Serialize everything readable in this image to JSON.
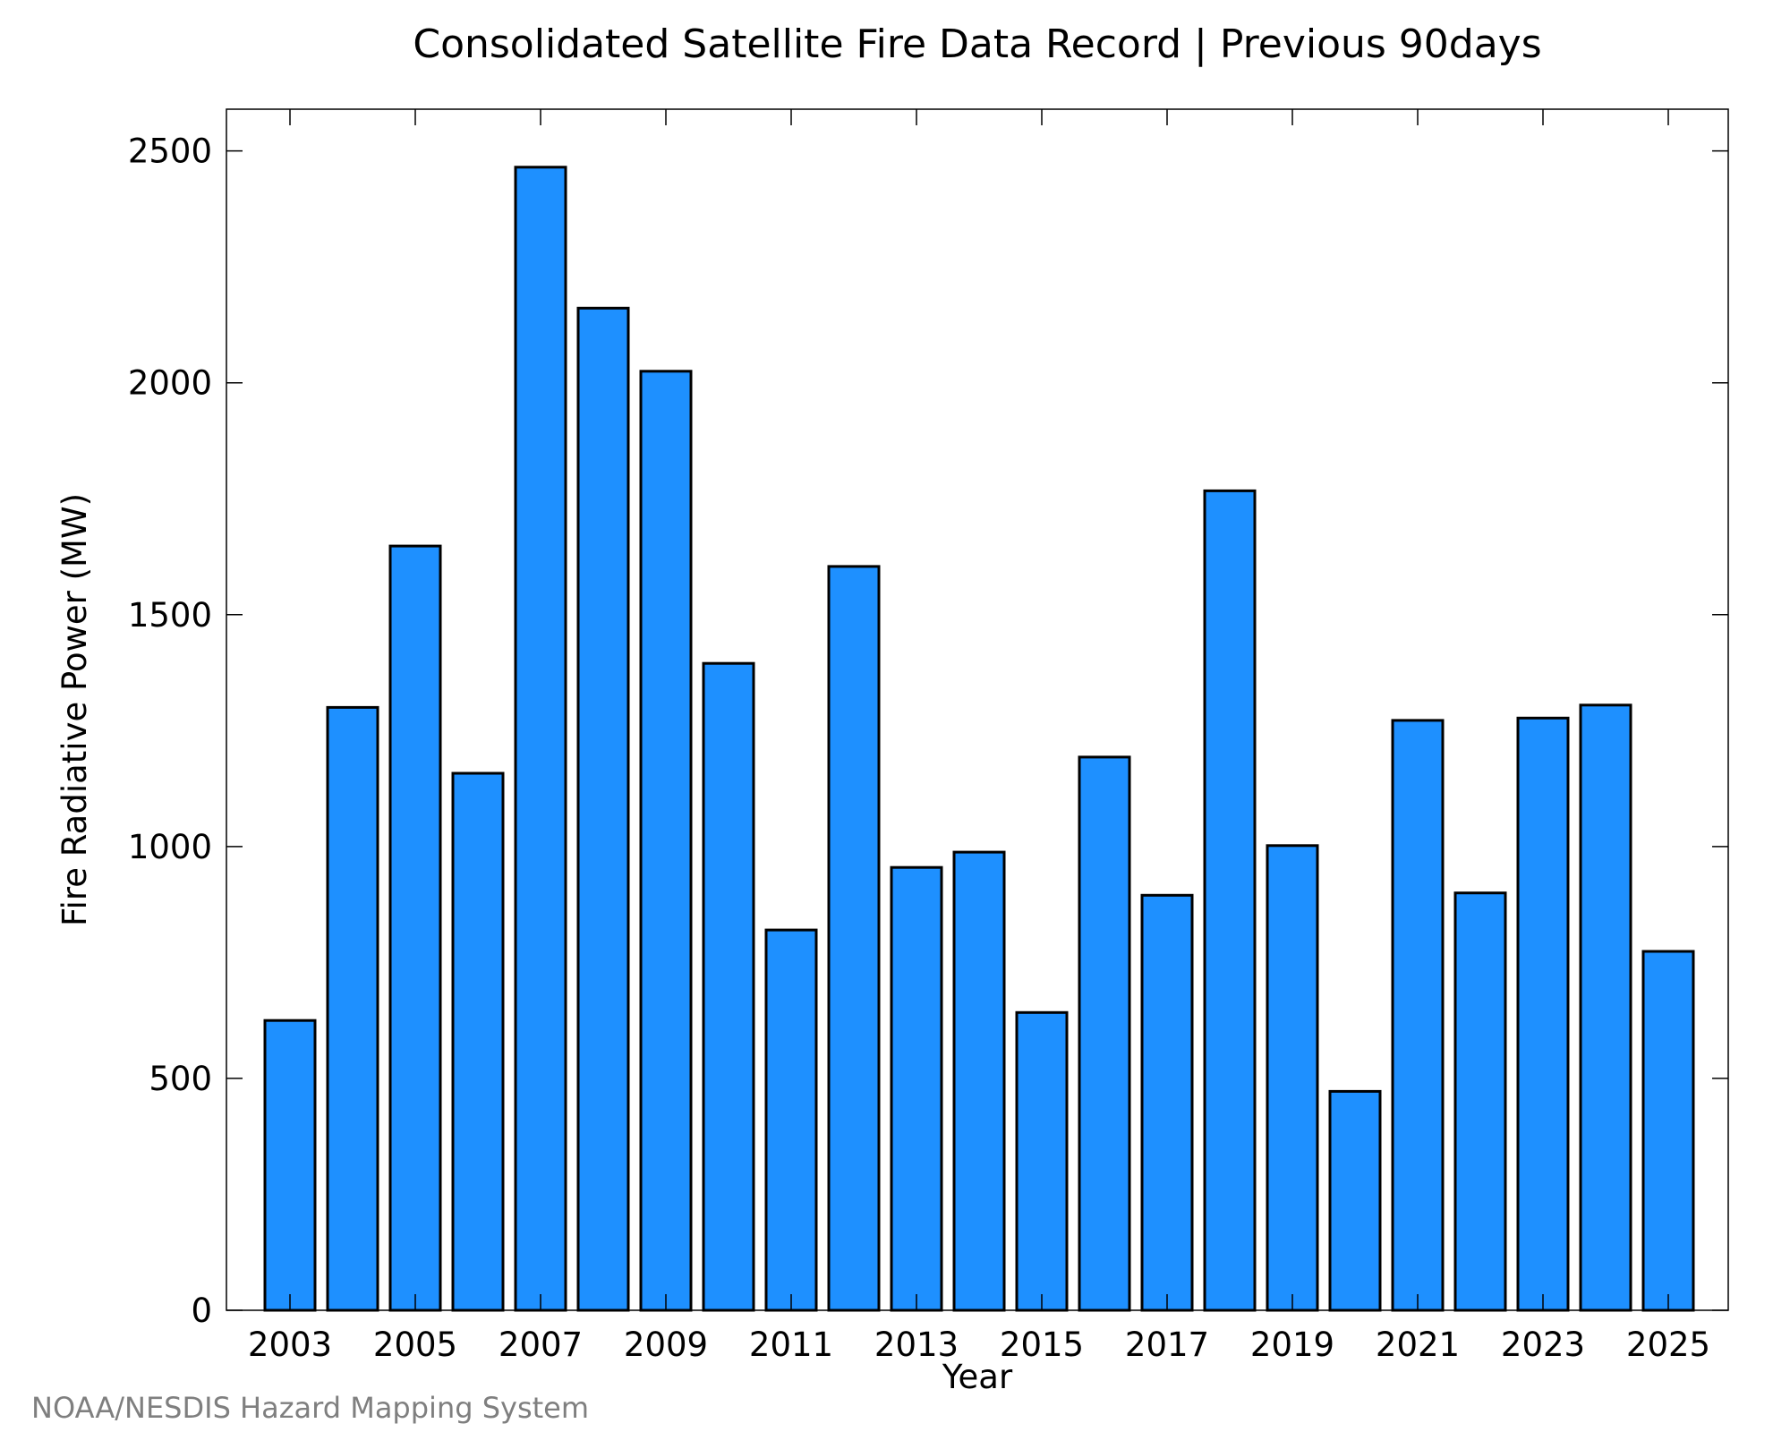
{
  "chart_data": {
    "type": "bar",
    "title": "Consolidated Satellite Fire Data Record | Previous 90days",
    "xlabel": "Year",
    "ylabel": "Fire Radiative Power (MW)",
    "categories": [
      "2003",
      "2004",
      "2005",
      "2006",
      "2007",
      "2008",
      "2009",
      "2010",
      "2011",
      "2012",
      "2013",
      "2014",
      "2015",
      "2016",
      "2017",
      "2018",
      "2019",
      "2020",
      "2021",
      "2022",
      "2023",
      "2024",
      "2025"
    ],
    "values": [
      625,
      1300,
      1648,
      1158,
      2465,
      2161,
      2025,
      1395,
      820,
      1604,
      955,
      988,
      642,
      1193,
      895,
      1767,
      1002,
      472,
      1272,
      900,
      1277,
      1305,
      774
    ],
    "x_tick_labels": [
      "2003",
      "2005",
      "2007",
      "2009",
      "2011",
      "2013",
      "2015",
      "2017",
      "2019",
      "2021",
      "2023",
      "2025"
    ],
    "y_tick_labels": [
      "0",
      "500",
      "1000",
      "1500",
      "2000",
      "2500"
    ],
    "ylim": [
      0,
      2590
    ],
    "grid": false,
    "bar_color": "#1e90ff",
    "bar_edge_color": "#000000"
  },
  "credit": "NOAA/NESDIS Hazard Mapping System"
}
